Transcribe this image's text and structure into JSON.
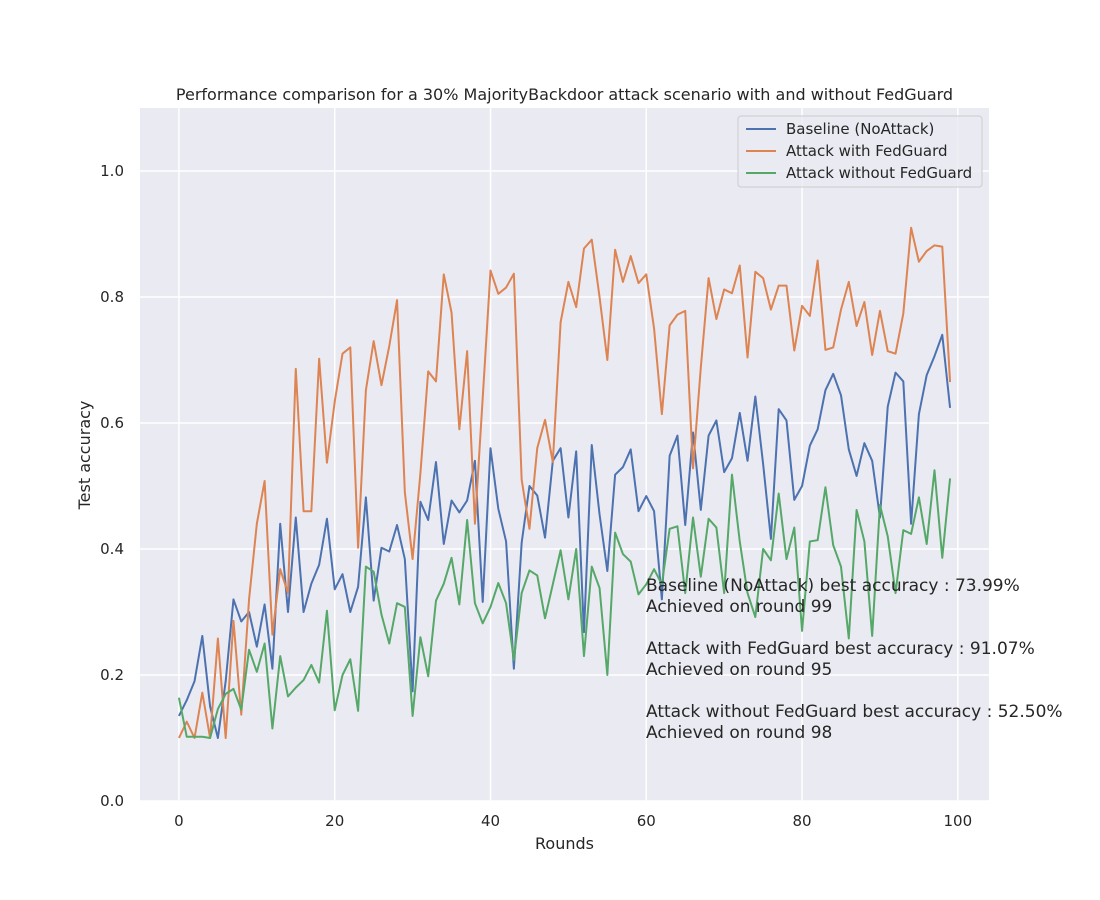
{
  "chart_data": {
    "type": "line",
    "title": "Performance comparison for a 30% MajorityBackdoor attack scenario with and without FedGuard",
    "xlabel": "Rounds",
    "ylabel": "Test accuracy",
    "xlim": [
      -5,
      104
    ],
    "ylim": [
      0.0,
      1.1
    ],
    "xticks": [
      0,
      20,
      40,
      60,
      80,
      100
    ],
    "xtick_labels": [
      "0",
      "20",
      "40",
      "60",
      "80",
      "100"
    ],
    "yticks": [
      0.0,
      0.2,
      0.4,
      0.6,
      0.8,
      1.0
    ],
    "ytick_labels": [
      "0.0",
      "0.2",
      "0.4",
      "0.6",
      "0.8",
      "1.0"
    ],
    "grid": true,
    "legend_position": "top-right",
    "x": [
      0,
      1,
      2,
      3,
      4,
      5,
      6,
      7,
      8,
      9,
      10,
      11,
      12,
      13,
      14,
      15,
      16,
      17,
      18,
      19,
      20,
      21,
      22,
      23,
      24,
      25,
      26,
      27,
      28,
      29,
      30,
      31,
      32,
      33,
      34,
      35,
      36,
      37,
      38,
      39,
      40,
      41,
      42,
      43,
      44,
      45,
      46,
      47,
      48,
      49,
      50,
      51,
      52,
      53,
      54,
      55,
      56,
      57,
      58,
      59,
      60,
      61,
      62,
      63,
      64,
      65,
      66,
      67,
      68,
      69,
      70,
      71,
      72,
      73,
      74,
      75,
      76,
      77,
      78,
      79,
      80,
      81,
      82,
      83,
      84,
      85,
      86,
      87,
      88,
      89,
      90,
      91,
      92,
      93,
      94,
      95,
      96,
      97,
      98,
      99
    ],
    "series": [
      {
        "name": "Baseline (NoAttack)",
        "color": "#4c72b0",
        "values": [
          0.135,
          0.16,
          0.19,
          0.262,
          0.15,
          0.1,
          0.19,
          0.32,
          0.285,
          0.3,
          0.245,
          0.312,
          0.21,
          0.44,
          0.3,
          0.45,
          0.3,
          0.345,
          0.375,
          0.448,
          0.336,
          0.36,
          0.3,
          0.34,
          0.482,
          0.318,
          0.402,
          0.396,
          0.438,
          0.384,
          0.174,
          0.475,
          0.446,
          0.538,
          0.408,
          0.477,
          0.458,
          0.477,
          0.54,
          0.316,
          0.56,
          0.464,
          0.412,
          0.21,
          0.41,
          0.5,
          0.485,
          0.418,
          0.54,
          0.56,
          0.45,
          0.555,
          0.268,
          0.565,
          0.455,
          0.365,
          0.518,
          0.53,
          0.558,
          0.46,
          0.484,
          0.46,
          0.32,
          0.548,
          0.58,
          0.438,
          0.585,
          0.462,
          0.58,
          0.604,
          0.522,
          0.544,
          0.616,
          0.54,
          0.642,
          0.535,
          0.416,
          0.622,
          0.604,
          0.478,
          0.5,
          0.564,
          0.59,
          0.652,
          0.678,
          0.644,
          0.558,
          0.516,
          0.568,
          0.54,
          0.45,
          0.626,
          0.68,
          0.666,
          0.44,
          0.614,
          0.676,
          0.706,
          0.74,
          0.624
        ]
      },
      {
        "name": "Attack with FedGuard",
        "color": "#dd8452",
        "values": [
          0.1,
          0.126,
          0.1,
          0.172,
          0.1,
          0.258,
          0.1,
          0.286,
          0.137,
          0.32,
          0.44,
          0.508,
          0.264,
          0.368,
          0.33,
          0.686,
          0.46,
          0.46,
          0.702,
          0.537,
          0.634,
          0.71,
          0.72,
          0.402,
          0.652,
          0.73,
          0.66,
          0.722,
          0.795,
          0.49,
          0.384,
          0.52,
          0.682,
          0.666,
          0.836,
          0.775,
          0.59,
          0.714,
          0.44,
          0.64,
          0.842,
          0.805,
          0.815,
          0.837,
          0.51,
          0.432,
          0.56,
          0.605,
          0.538,
          0.76,
          0.824,
          0.784,
          0.877,
          0.891,
          0.8,
          0.7,
          0.875,
          0.824,
          0.865,
          0.822,
          0.836,
          0.75,
          0.614,
          0.755,
          0.772,
          0.778,
          0.528,
          0.688,
          0.83,
          0.765,
          0.812,
          0.806,
          0.85,
          0.704,
          0.84,
          0.83,
          0.78,
          0.818,
          0.818,
          0.715,
          0.786,
          0.77,
          0.858,
          0.716,
          0.72,
          0.78,
          0.824,
          0.754,
          0.792,
          0.708,
          0.778,
          0.714,
          0.71,
          0.774,
          0.91,
          0.856,
          0.873,
          0.882,
          0.88,
          0.665
        ]
      },
      {
        "name": "Attack without FedGuard",
        "color": "#55a868",
        "values": [
          0.164,
          0.102,
          0.102,
          0.102,
          0.1,
          0.146,
          0.17,
          0.178,
          0.145,
          0.24,
          0.205,
          0.25,
          0.115,
          0.23,
          0.166,
          0.18,
          0.192,
          0.216,
          0.188,
          0.302,
          0.144,
          0.2,
          0.225,
          0.143,
          0.372,
          0.364,
          0.296,
          0.25,
          0.314,
          0.308,
          0.135,
          0.26,
          0.198,
          0.318,
          0.345,
          0.386,
          0.312,
          0.446,
          0.314,
          0.282,
          0.308,
          0.346,
          0.314,
          0.224,
          0.33,
          0.366,
          0.358,
          0.29,
          0.344,
          0.398,
          0.32,
          0.4,
          0.23,
          0.372,
          0.338,
          0.2,
          0.426,
          0.392,
          0.38,
          0.328,
          0.344,
          0.368,
          0.344,
          0.432,
          0.436,
          0.33,
          0.45,
          0.356,
          0.448,
          0.434,
          0.33,
          0.518,
          0.412,
          0.33,
          0.292,
          0.4,
          0.382,
          0.488,
          0.384,
          0.434,
          0.27,
          0.412,
          0.414,
          0.498,
          0.406,
          0.372,
          0.258,
          0.462,
          0.412,
          0.262,
          0.47,
          0.42,
          0.33,
          0.43,
          0.424,
          0.482,
          0.408,
          0.525,
          0.386,
          0.512
        ]
      }
    ],
    "annotations": [
      "Baseline (NoAttack) best accuracy : 73.99%",
      "Achieved on round 99",
      "Attack with FedGuard best accuracy : 91.07%",
      "Achieved on round 95",
      "Attack without FedGuard best accuracy : 52.50%",
      "Achieved on round 98"
    ]
  },
  "colors": {
    "plot_background": "#eaeaf2",
    "grid": "#ffffff",
    "text": "#262626"
  }
}
